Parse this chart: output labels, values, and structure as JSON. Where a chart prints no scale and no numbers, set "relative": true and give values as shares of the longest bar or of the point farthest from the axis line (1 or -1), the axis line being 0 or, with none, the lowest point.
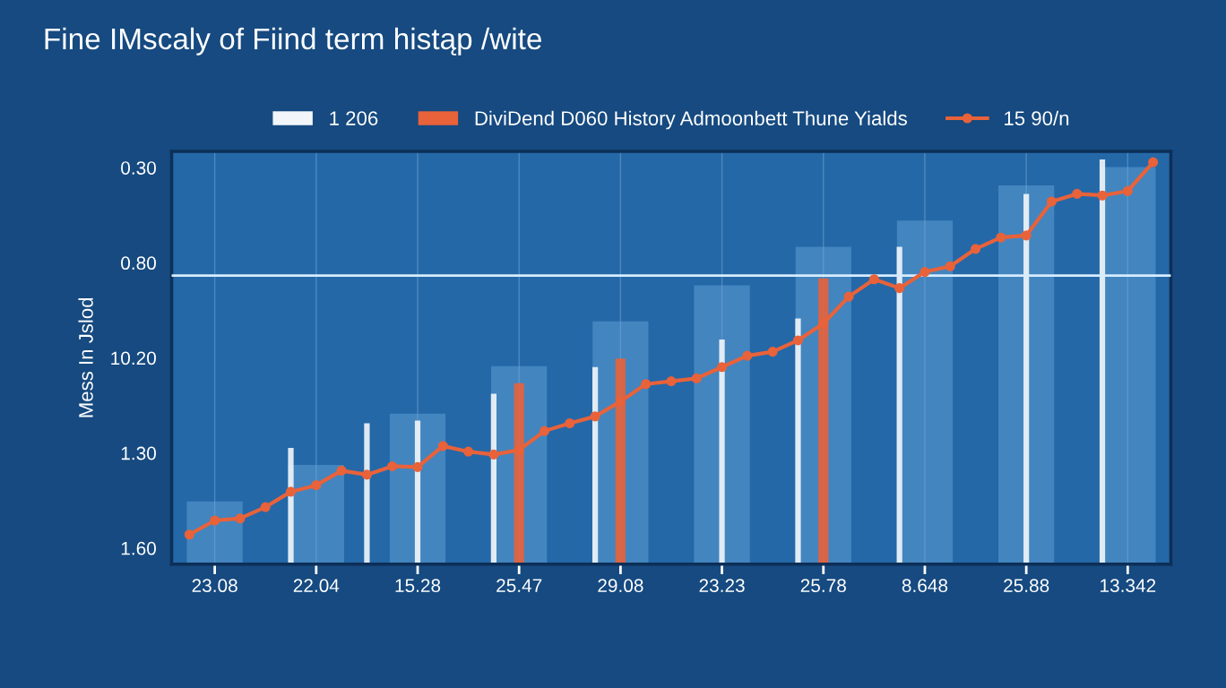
{
  "chart_data": {
    "type": "line",
    "title": "Fine IMscaly of Fiind term histąp /wite",
    "ylabel": "Mess In Jslod",
    "relative": true,
    "categories": [
      null,
      "23.08",
      null,
      null,
      null,
      "22.04",
      null,
      null,
      null,
      "15.28",
      null,
      null,
      null,
      "25.47",
      null,
      null,
      null,
      "29.08",
      null,
      null,
      null,
      "23.23",
      null,
      null,
      null,
      "25.78",
      null,
      null,
      null,
      "8.648",
      null,
      null,
      null,
      "25.88",
      null,
      null,
      null,
      "13.342",
      null
    ],
    "annotations": [
      "1.60",
      "1.30",
      "10.20",
      "0.80",
      "0.30"
    ],
    "grid": true,
    "legend": "top",
    "marker": "circle",
    "ref_lines": [
      {
        "axis": "y",
        "value": 0.713,
        "color": "#d6ecff"
      }
    ],
    "series": [
      {
        "type": "bar",
        "color": "#6aa8dc",
        "values": [
          null,
          0.155,
          null,
          null,
          null,
          0.245,
          null,
          null,
          null,
          0.372,
          null,
          null,
          null,
          0.489,
          null,
          null,
          null,
          0.6,
          null,
          null,
          null,
          0.689,
          null,
          null,
          null,
          0.784,
          null,
          null,
          null,
          0.849,
          null,
          null,
          null,
          0.936,
          null,
          null,
          null,
          0.981,
          null
        ]
      },
      {
        "type": "bar",
        "name": "1 206",
        "color": "#f2f6fa",
        "values": [
          null,
          null,
          null,
          null,
          0.287,
          null,
          null,
          0.348,
          null,
          0.355,
          null,
          null,
          0.421,
          null,
          null,
          null,
          0.487,
          null,
          null,
          null,
          null,
          0.555,
          null,
          null,
          0.607,
          null,
          null,
          null,
          0.784,
          null,
          null,
          null,
          null,
          0.915,
          null,
          null,
          1.0,
          null,
          null
        ]
      },
      {
        "type": "bar",
        "name": "DiviDend D060 History Admoonbett Thune Yialds",
        "color": "#e8623a",
        "values": [
          null,
          null,
          null,
          null,
          null,
          null,
          null,
          null,
          null,
          null,
          null,
          null,
          null,
          0.447,
          null,
          null,
          null,
          0.508,
          null,
          null,
          null,
          null,
          null,
          null,
          null,
          0.706,
          null,
          null,
          null,
          null,
          null,
          null,
          null,
          null,
          null,
          null,
          null,
          null,
          null
        ]
      },
      {
        "name": "15 90/n",
        "color": "#e8623a",
        "values": [
          0.073,
          0.108,
          0.113,
          0.141,
          0.179,
          0.195,
          0.231,
          0.221,
          0.242,
          0.24,
          0.292,
          0.278,
          0.271,
          0.282,
          0.329,
          0.348,
          0.365,
          0.402,
          0.445,
          0.452,
          0.459,
          0.487,
          0.515,
          0.525,
          0.553,
          0.595,
          0.661,
          0.704,
          0.682,
          0.722,
          0.736,
          0.779,
          0.807,
          0.812,
          0.896,
          0.915,
          0.911,
          0.922,
          0.993
        ]
      }
    ]
  }
}
